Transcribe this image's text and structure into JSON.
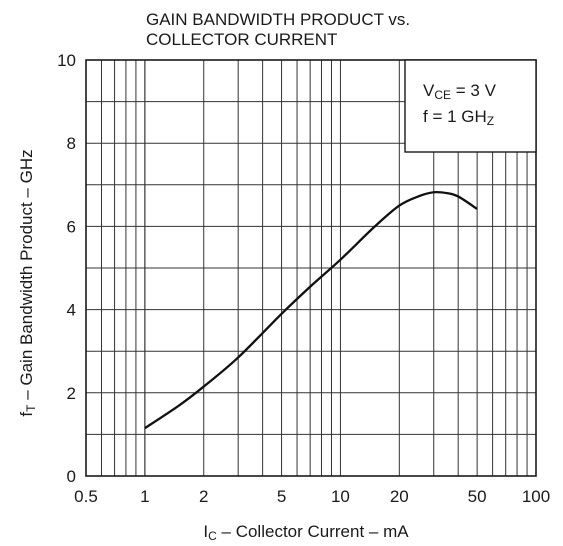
{
  "chart_data": {
    "type": "line",
    "title_line1": "GAIN BANDWIDTH PRODUCT vs.",
    "title_line2": "COLLECTOR CURRENT",
    "xlabel": {
      "main": "I",
      "sub": "C",
      "rest": " – Collector Current – mA"
    },
    "ylabel": {
      "main": "f",
      "sub": "T",
      "rest": " – Gain Bandwidth Product – GHz"
    },
    "x_scale": "log",
    "xlim": [
      0.5,
      100
    ],
    "ylim": [
      0,
      10
    ],
    "grid": true,
    "x_ticks": [
      0.5,
      1,
      2,
      5,
      10,
      20,
      50,
      100
    ],
    "x_tick_labels": [
      "0.5",
      "1",
      "2",
      "5",
      "10",
      "20",
      "50",
      "100"
    ],
    "y_ticks": [
      0,
      2,
      4,
      6,
      8,
      10
    ],
    "y_tick_labels": [
      "0",
      "2",
      "4",
      "6",
      "8",
      "10"
    ],
    "annotation": [
      {
        "main": "V",
        "sub": "CE",
        "rest": " = 3 V"
      },
      {
        "main": "f = 1 GH",
        "sub": "Z",
        "rest": ""
      }
    ],
    "annotation_placement": "top-right",
    "series": [
      {
        "x": [
          1,
          1.5,
          2,
          3,
          5,
          7,
          10,
          15,
          20,
          25,
          30,
          35,
          40,
          50
        ],
        "y": [
          1.15,
          1.7,
          2.15,
          2.85,
          3.9,
          4.55,
          5.2,
          6.0,
          6.5,
          6.72,
          6.82,
          6.8,
          6.72,
          6.42
        ]
      }
    ],
    "colors": {
      "line": "#111111",
      "grid": "#333333",
      "text": "#1a1a1a"
    }
  }
}
